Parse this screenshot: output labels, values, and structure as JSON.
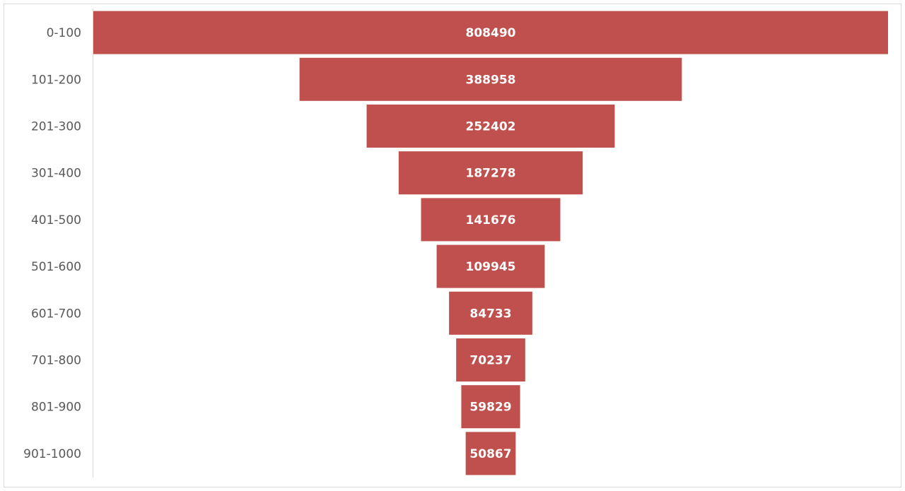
{
  "chart_data": {
    "type": "bar",
    "orientation": "horizontal",
    "style": "funnel",
    "title": "",
    "xlabel": "",
    "ylabel": "",
    "categories": [
      "0-100",
      "101-200",
      "201-300",
      "301-400",
      "401-500",
      "501-600",
      "601-700",
      "701-800",
      "801-900",
      "901-1000"
    ],
    "values": [
      808490,
      388958,
      252402,
      187278,
      141676,
      109945,
      84733,
      70237,
      59829,
      50867
    ],
    "data_labels": [
      "808490",
      "388958",
      "252402",
      "187278",
      "141676",
      "109945",
      "84733",
      "70237",
      "59829",
      "50867"
    ],
    "xlim": [
      0,
      808490
    ],
    "grid": false,
    "legend": "none",
    "bar_color": "#c0504d",
    "label_color": "#ffffff",
    "axis_label_color": "#595959",
    "axis_line_color": "#d9d9d9",
    "border_color": "#d9d9d9"
  }
}
